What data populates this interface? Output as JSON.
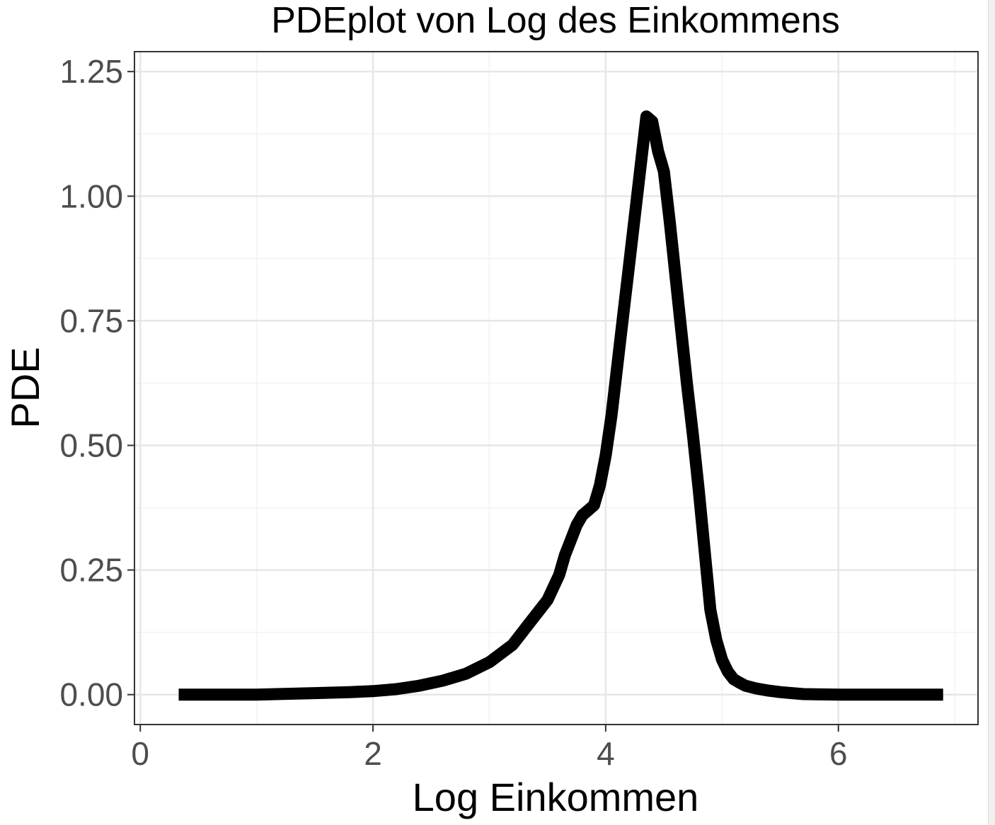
{
  "chart_data": {
    "type": "line",
    "title": "PDEplot von Log des Einkommens",
    "xlabel": "Log Einkommen",
    "ylabel": "PDE",
    "xlim": [
      -0.05,
      7.2
    ],
    "ylim": [
      -0.06,
      1.29
    ],
    "x_ticks": [
      0,
      2,
      4,
      6
    ],
    "x_tick_labels": [
      "0",
      "2",
      "4",
      "6"
    ],
    "y_ticks": [
      0,
      0.25,
      0.5,
      0.75,
      1.0,
      1.25
    ],
    "y_tick_labels": [
      "0.00",
      "0.25",
      "0.50",
      "0.75",
      "1.00",
      "1.25"
    ],
    "grid": true,
    "line_color": "#000000",
    "series": [
      {
        "x": [
          0.33,
          1.0,
          1.5,
          1.8,
          2.0,
          2.2,
          2.4,
          2.6,
          2.8,
          3.0,
          3.2,
          3.4,
          3.5,
          3.6,
          3.65,
          3.7,
          3.75,
          3.8,
          3.85,
          3.9,
          3.95,
          4.0,
          4.05,
          4.1,
          4.15,
          4.2,
          4.25,
          4.3,
          4.35,
          4.4,
          4.45,
          4.5,
          4.55,
          4.6,
          4.65,
          4.7,
          4.75,
          4.8,
          4.85,
          4.9,
          4.95,
          5.0,
          5.05,
          5.1,
          5.15,
          5.2,
          5.3,
          5.4,
          5.5,
          5.6,
          5.7,
          6.0,
          6.5,
          6.9
        ],
        "y": [
          0.0,
          0.0,
          0.003,
          0.005,
          0.007,
          0.011,
          0.018,
          0.028,
          0.042,
          0.065,
          0.1,
          0.16,
          0.19,
          0.24,
          0.28,
          0.31,
          0.34,
          0.36,
          0.37,
          0.38,
          0.42,
          0.48,
          0.56,
          0.66,
          0.76,
          0.86,
          0.96,
          1.06,
          1.16,
          1.15,
          1.09,
          1.05,
          0.95,
          0.84,
          0.73,
          0.62,
          0.52,
          0.41,
          0.29,
          0.17,
          0.11,
          0.07,
          0.046,
          0.031,
          0.024,
          0.018,
          0.012,
          0.008,
          0.005,
          0.003,
          0.001,
          0.0,
          0.0,
          0.0
        ]
      }
    ]
  }
}
